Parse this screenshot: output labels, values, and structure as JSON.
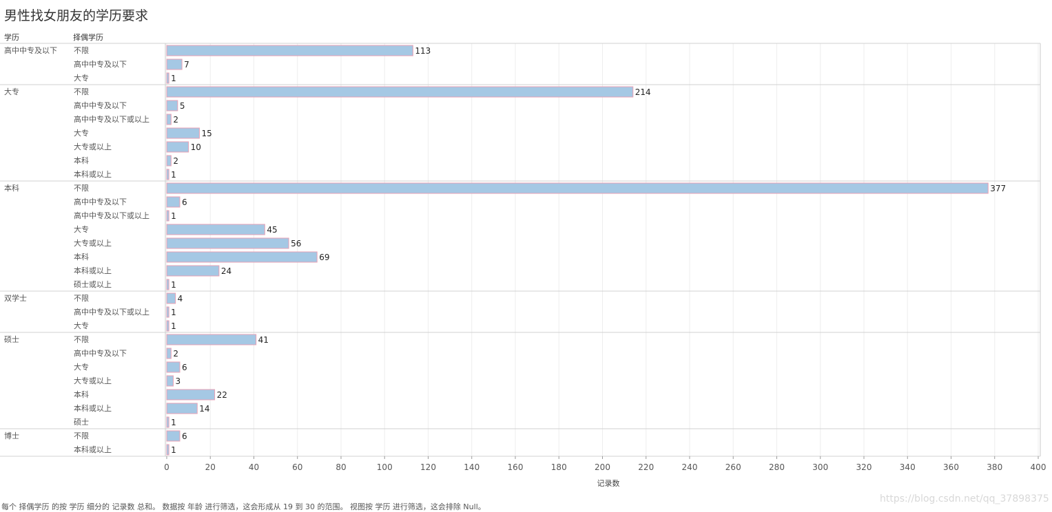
{
  "title": "男性找女朋友的学历要求",
  "col_headers": {
    "education": "学历",
    "partner_education": "择偶学历"
  },
  "footnote": "每个 择偶学历 的按 学历 细分的 记录数 总和。 数据按 年龄 进行筛选，这会形成从 19 到 30 的范围。 视图按 学历 进行筛选，这会排除 Null。",
  "watermark": "https://blog.csdn.net/qq_37898375",
  "colors": {
    "bar_fill": "#a5c8e4",
    "bar_stroke": "#e8a0b4",
    "grid": "#eeeeee",
    "separator": "#d0d0d0"
  },
  "chart_data": {
    "type": "bar",
    "orientation": "horizontal",
    "xlabel": "记录数",
    "xlim": [
      0,
      400
    ],
    "x_ticks": [
      0,
      20,
      40,
      60,
      80,
      100,
      120,
      140,
      160,
      180,
      200,
      220,
      240,
      260,
      280,
      300,
      320,
      340,
      360,
      380,
      400
    ],
    "grid": true,
    "groups": [
      {
        "name": "高中中专及以下",
        "items": [
          {
            "label": "不限",
            "value": 113
          },
          {
            "label": "高中中专及以下",
            "value": 7
          },
          {
            "label": "大专",
            "value": 1
          }
        ]
      },
      {
        "name": "大专",
        "items": [
          {
            "label": "不限",
            "value": 214
          },
          {
            "label": "高中中专及以下",
            "value": 5
          },
          {
            "label": "高中中专及以下或以上",
            "value": 2
          },
          {
            "label": "大专",
            "value": 15
          },
          {
            "label": "大专或以上",
            "value": 10
          },
          {
            "label": "本科",
            "value": 2
          },
          {
            "label": "本科或以上",
            "value": 1
          }
        ]
      },
      {
        "name": "本科",
        "items": [
          {
            "label": "不限",
            "value": 377
          },
          {
            "label": "高中中专及以下",
            "value": 6
          },
          {
            "label": "高中中专及以下或以上",
            "value": 1
          },
          {
            "label": "大专",
            "value": 45
          },
          {
            "label": "大专或以上",
            "value": 56
          },
          {
            "label": "本科",
            "value": 69
          },
          {
            "label": "本科或以上",
            "value": 24
          },
          {
            "label": "硕士或以上",
            "value": 1
          }
        ]
      },
      {
        "name": "双学士",
        "items": [
          {
            "label": "不限",
            "value": 4
          },
          {
            "label": "高中中专及以下或以上",
            "value": 1
          },
          {
            "label": "大专",
            "value": 1
          }
        ]
      },
      {
        "name": "硕士",
        "items": [
          {
            "label": "不限",
            "value": 41
          },
          {
            "label": "高中中专及以下",
            "value": 2
          },
          {
            "label": "大专",
            "value": 6
          },
          {
            "label": "大专或以上",
            "value": 3
          },
          {
            "label": "本科",
            "value": 22
          },
          {
            "label": "本科或以上",
            "value": 14
          },
          {
            "label": "硕士",
            "value": 1
          }
        ]
      },
      {
        "name": "博士",
        "items": [
          {
            "label": "不限",
            "value": 6
          },
          {
            "label": "本科或以上",
            "value": 1
          }
        ]
      }
    ]
  }
}
